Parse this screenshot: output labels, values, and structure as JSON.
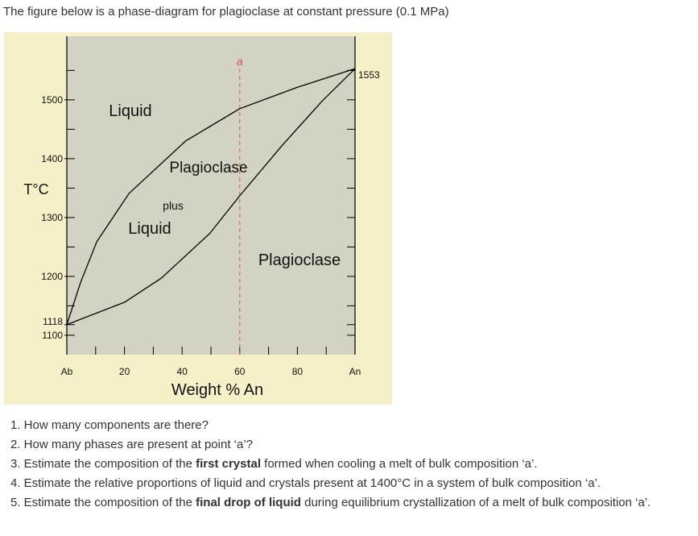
{
  "intro": "The figure below is a phase-diagram for plagioclase at constant pressure (0.1 MPa)",
  "chart_data": {
    "type": "line",
    "xlabel": "Weight % An",
    "ylabel": "T°C",
    "xlim": [
      0,
      100
    ],
    "ylim": [
      1067,
      1608
    ],
    "xticks": [
      {
        "value": 0,
        "label": "Ab"
      },
      20,
      40,
      60,
      80,
      {
        "value": 100,
        "label": "An"
      }
    ],
    "xminorticks": [
      10,
      30,
      50,
      70,
      90
    ],
    "yticks": [
      1100,
      1118,
      1200,
      1300,
      1400,
      1500
    ],
    "yminorticks": [
      1150,
      1250,
      1350,
      1450,
      1550
    ],
    "y2lim": [
      1067,
      1608
    ],
    "y2ticks": [
      1553
    ],
    "series": [
      {
        "color": "#000000",
        "x": [
          0,
          4.8,
          10.4,
          21.6,
          41.2,
          60,
          80.4,
          100
        ],
        "values": [
          1118,
          1190,
          1259,
          1341,
          1430,
          1485,
          1522,
          1553
        ]
      },
      {
        "color": "#000000",
        "x": [
          0,
          20,
          32.8,
          49.6,
          60,
          74.8,
          88.8,
          100
        ],
        "values": [
          1118,
          1156,
          1197,
          1273,
          1337,
          1423,
          1499,
          1553
        ]
      }
    ],
    "marker": {
      "label": "a",
      "x": 60,
      "color": "#d9534f"
    },
    "annotations": [
      "Liquid",
      "Plagioclase",
      "plus",
      "Liquid",
      "Plagioclase"
    ]
  },
  "questions": [
    [
      {
        "text": "1. How many components are there?"
      }
    ],
    [
      {
        "text": "2. How many phases are present at point ‘a’?"
      }
    ],
    [
      {
        "text": "3. Estimate the composition of the "
      },
      {
        "text": "first crystal",
        "bold": true
      },
      {
        "text": " formed when cooling a melt of bulk composition ‘a’."
      }
    ],
    [
      {
        "text": "4. Estimate the relative proportions of liquid and crystals present at 1400°C in a system of bulk composition ‘a’."
      }
    ],
    [
      {
        "text": "5. Estimate the composition of the "
      },
      {
        "text": "final drop of liquid",
        "bold": true
      },
      {
        "text": " during equilibrium crystallization of a melt of bulk composition ‘a’."
      }
    ]
  ]
}
